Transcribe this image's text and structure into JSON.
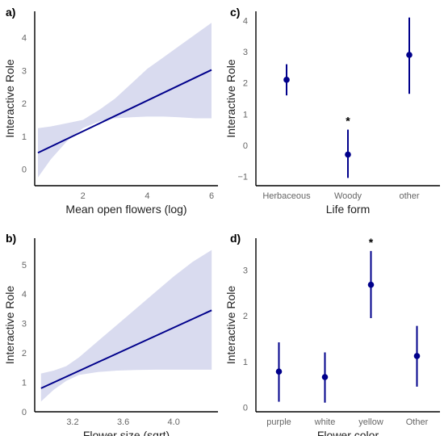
{
  "colors": {
    "line": "#00008b",
    "band": "#d9dbef",
    "axis": "#000000"
  },
  "chart_data": [
    {
      "panel_label": "a)",
      "type": "line",
      "xlabel": "Mean open flowers (log)",
      "ylabel": "Interactive Role",
      "xlim": [
        0.5,
        6.2
      ],
      "ylim": [
        -0.5,
        4.8
      ],
      "xticks": [
        2,
        4,
        6
      ],
      "yticks": [
        0,
        1,
        2,
        3,
        4
      ],
      "x_tick_labels": [
        "2",
        "4",
        "6"
      ],
      "y_tick_labels": [
        "0",
        "1",
        "2",
        "3",
        "4"
      ],
      "line": {
        "x": [
          0.6,
          6.0
        ],
        "y": [
          0.5,
          3.02
        ]
      },
      "ribbon": {
        "x": [
          0.6,
          1.0,
          1.5,
          2.0,
          2.5,
          3.0,
          3.5,
          4.0,
          4.5,
          5.0,
          5.5,
          6.0
        ],
        "lower": [
          -0.25,
          0.3,
          0.85,
          1.25,
          1.45,
          1.55,
          1.58,
          1.6,
          1.6,
          1.58,
          1.55,
          1.55
        ],
        "upper": [
          1.25,
          1.3,
          1.4,
          1.5,
          1.8,
          2.15,
          2.6,
          3.05,
          3.4,
          3.75,
          4.1,
          4.45
        ]
      },
      "annotations": []
    },
    {
      "panel_label": "b)",
      "type": "line",
      "xlabel": "Flower size (sqrt)",
      "ylabel": "Interactive Role",
      "xlim": [
        2.9,
        4.35
      ],
      "ylim": [
        0,
        5.9
      ],
      "xticks": [
        3.2,
        3.6,
        4.0
      ],
      "yticks": [
        0,
        1,
        2,
        3,
        4,
        5
      ],
      "x_tick_labels": [
        "3.2",
        "3.6",
        "4.0"
      ],
      "y_tick_labels": [
        "0",
        "1",
        "2",
        "3",
        "4",
        "5"
      ],
      "line": {
        "x": [
          2.95,
          4.3
        ],
        "y": [
          0.8,
          3.45
        ]
      },
      "ribbon": {
        "x": [
          2.95,
          3.05,
          3.15,
          3.25,
          3.4,
          3.55,
          3.7,
          3.85,
          4.0,
          4.15,
          4.3
        ],
        "lower": [
          0.35,
          0.75,
          1.05,
          1.25,
          1.35,
          1.4,
          1.42,
          1.43,
          1.43,
          1.43,
          1.43
        ],
        "upper": [
          1.3,
          1.4,
          1.55,
          1.85,
          2.4,
          2.95,
          3.5,
          4.05,
          4.6,
          5.1,
          5.5
        ]
      },
      "annotations": []
    },
    {
      "panel_label": "c)",
      "type": "scatter",
      "xlabel": "Life form",
      "ylabel": "Interactive Role",
      "categories": [
        "Herbaceous",
        "Woody",
        "other"
      ],
      "x_tick_labels": [
        "Herbaceous",
        "Woody",
        "other"
      ],
      "ylim": [
        -1.3,
        4.3
      ],
      "yticks": [
        -1,
        0,
        1,
        2,
        3,
        4
      ],
      "y_tick_labels": [
        "−1",
        "0",
        "1",
        "2",
        "3",
        "4"
      ],
      "points": [
        {
          "category": "Herbaceous",
          "y": 2.1,
          "lower": 1.6,
          "upper": 2.6
        },
        {
          "category": "Woody",
          "y": -0.3,
          "lower": -1.05,
          "upper": 0.5
        },
        {
          "category": "other",
          "y": 2.9,
          "lower": 1.65,
          "upper": 4.1
        }
      ],
      "annotations": [
        {
          "category": "Woody",
          "text": "*"
        }
      ]
    },
    {
      "panel_label": "d)",
      "type": "scatter",
      "xlabel": "Flower color",
      "ylabel": "Interactive Role",
      "categories": [
        "purple",
        "white",
        "yellow",
        "Other"
      ],
      "x_tick_labels": [
        "purple",
        "white",
        "yellow",
        "Other"
      ],
      "ylim": [
        -0.1,
        3.7
      ],
      "yticks": [
        0,
        1,
        2,
        3
      ],
      "y_tick_labels": [
        "0",
        "1",
        "2",
        "3"
      ],
      "points": [
        {
          "category": "purple",
          "y": 0.78,
          "lower": 0.12,
          "upper": 1.42
        },
        {
          "category": "white",
          "y": 0.66,
          "lower": 0.1,
          "upper": 1.2
        },
        {
          "category": "yellow",
          "y": 2.68,
          "lower": 1.95,
          "upper": 3.42
        },
        {
          "category": "Other",
          "y": 1.12,
          "lower": 0.45,
          "upper": 1.78
        }
      ],
      "annotations": [
        {
          "category": "yellow",
          "text": "*"
        }
      ]
    }
  ]
}
